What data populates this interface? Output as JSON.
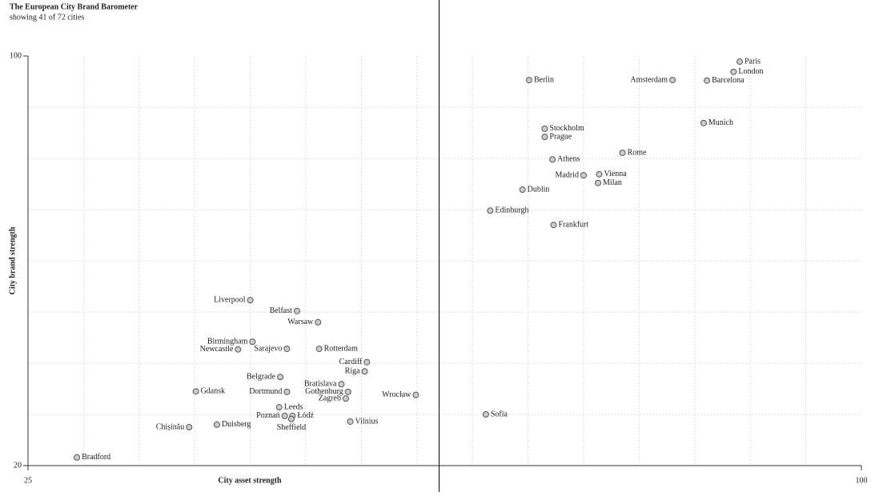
{
  "chart_data": {
    "type": "scatter",
    "title": "The European City Brand Barometer",
    "subtitle": "showing 41 of 72 cities",
    "x_label": "City asset strength",
    "y_label": "City brand strength",
    "xlim": [
      25,
      100
    ],
    "ylim": [
      20,
      100
    ],
    "xticks": [
      25,
      100
    ],
    "yticks": [
      20,
      100
    ],
    "xgrid": [
      30,
      35,
      40,
      45,
      50,
      55,
      60,
      65,
      70,
      75,
      80,
      85,
      90,
      95
    ],
    "ygrid": [
      30,
      40,
      50,
      60,
      70,
      80,
      90
    ],
    "reference_x": 62,
    "color": "#cccccc",
    "labels": [
      "Paris",
      "London",
      "Barcelona",
      "Amsterdam",
      "Berlin",
      "Munich",
      "Stockholm",
      "Prague",
      "Rome",
      "Athens",
      "Madrid",
      "Vienna",
      "Milan",
      "Dublin",
      "Edinburgh",
      "Frankfurt",
      "Sofia",
      "Liverpool",
      "Belfast",
      "Warsaw",
      "Birmingham",
      "Newcastle",
      "Sarajevo",
      "Rotterdam",
      "Cardiff",
      "Riga",
      "Belgrade",
      "Bratislava",
      "Gothenburg",
      "Zagreb",
      "Wrocław",
      "Gdansk",
      "Dortmund",
      "Leeds",
      "Poznań",
      "Łódź",
      "Sheffield",
      "Vilnius",
      "Duisberg",
      "Chișinău",
      "Bradford"
    ],
    "x": [
      89.05,
      88.5,
      86.1,
      83.0,
      70.1,
      85.8,
      71.5,
      71.5,
      78.5,
      72.2,
      75.0,
      76.4,
      76.3,
      69.5,
      66.6,
      72.3,
      66.2,
      45.0,
      49.2,
      51.1,
      45.2,
      43.9,
      48.3,
      51.2,
      55.5,
      55.3,
      47.7,
      53.2,
      53.8,
      53.6,
      59.9,
      40.1,
      48.3,
      47.6,
      48.1,
      48.8,
      48.7,
      54.0,
      42.0,
      39.5,
      29.4
    ],
    "values": [
      98.9,
      96.9,
      95.2,
      95.3,
      95.3,
      86.9,
      85.8,
      84.2,
      81.1,
      79.8,
      76.7,
      76.9,
      75.2,
      73.9,
      69.8,
      67.0,
      30.0,
      52.3,
      50.2,
      48.0,
      44.2,
      42.7,
      42.8,
      42.8,
      40.2,
      38.4,
      37.3,
      35.9,
      34.4,
      33.1,
      33.8,
      34.5,
      34.4,
      31.4,
      29.7,
      29.7,
      29.1,
      28.6,
      28.0,
      27.5,
      21.6
    ]
  }
}
